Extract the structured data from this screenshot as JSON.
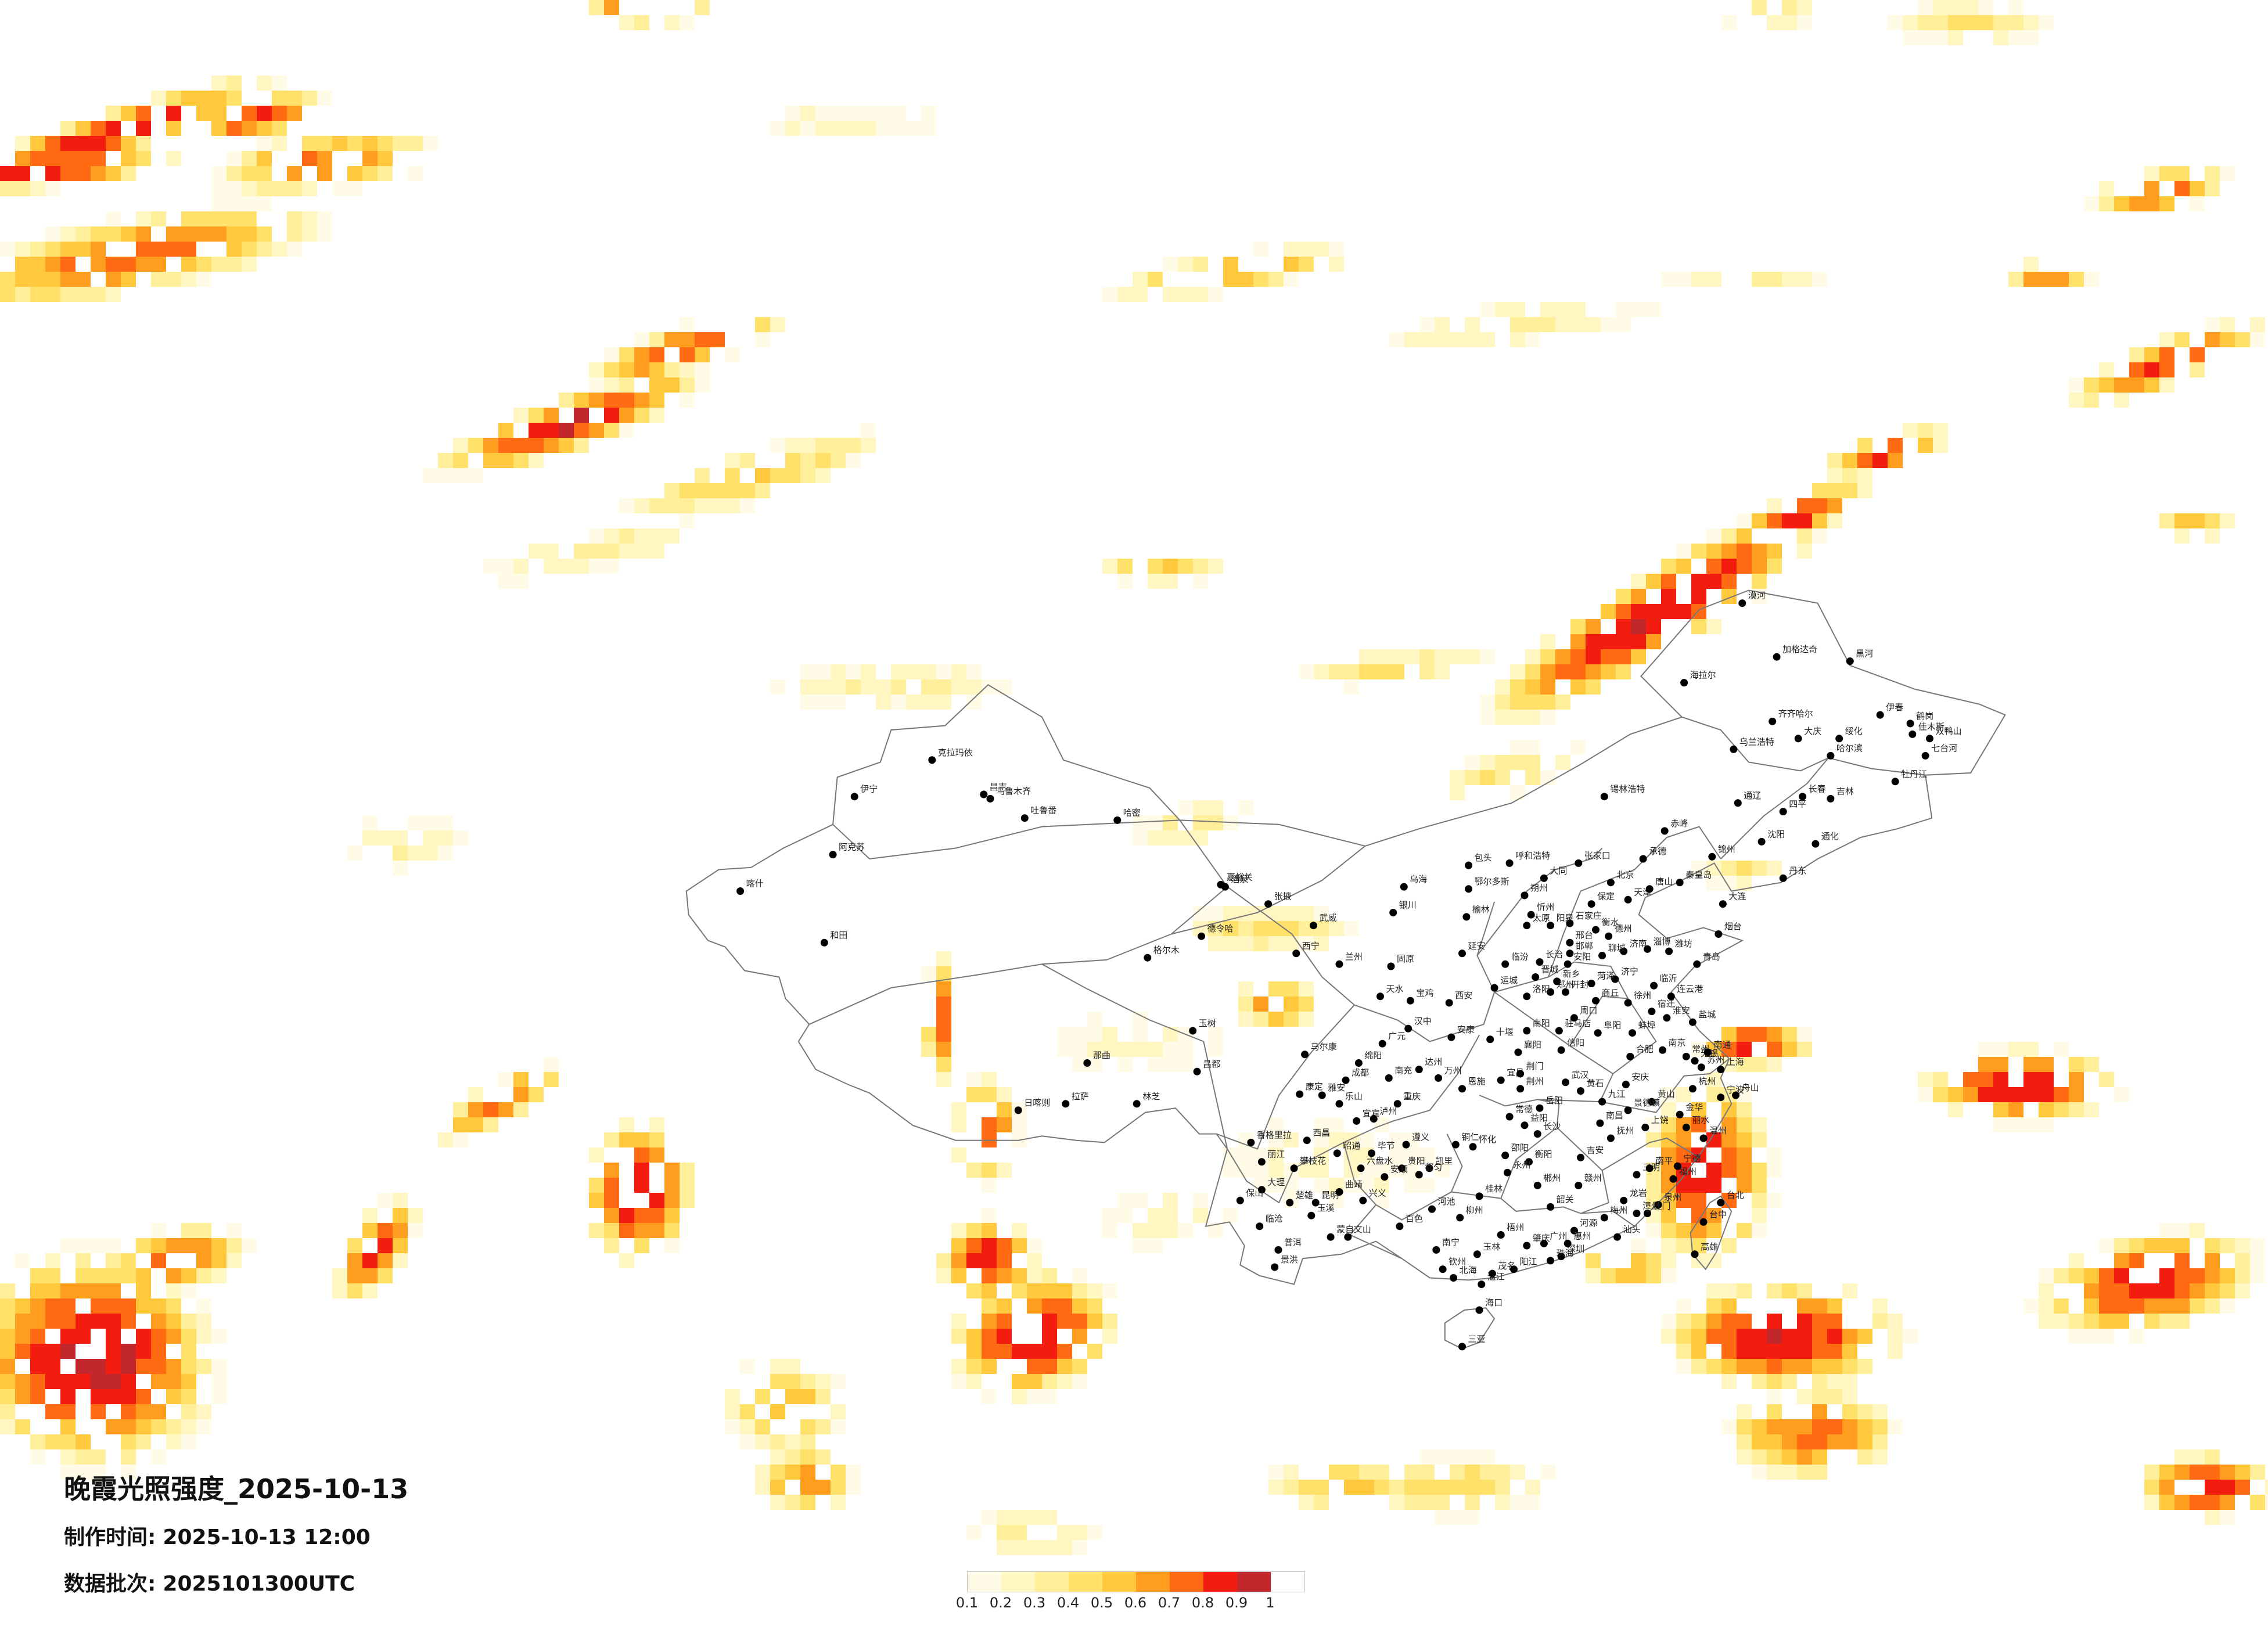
{
  "title": "晚霞光照强度_2025-10-13",
  "made_time": {
    "label": "制作时间:",
    "value": "2025-10-13 12:00"
  },
  "data_batch": {
    "label": "数据批次:",
    "value": "2025101300UTC"
  },
  "legend": {
    "ticks": [
      "0.1",
      "0.2",
      "0.3",
      "0.4",
      "0.5",
      "0.6",
      "0.7",
      "0.8",
      "0.9",
      "1"
    ],
    "colors": [
      "#fffbe6",
      "#fff6c2",
      "#ffef9a",
      "#ffe169",
      "#ffc83d",
      "#ff9d1e",
      "#ff6a12",
      "#f21d0e",
      "#c3272e"
    ]
  },
  "map": {
    "outline_color": "#777777",
    "city_dot_color": "#000000",
    "cities": [
      {
        "name": "克拉玛依",
        "lon": 84.9,
        "lat": 45.6
      },
      {
        "name": "昌吉",
        "lon": 87.3,
        "lat": 44.0
      },
      {
        "name": "乌鲁木齐",
        "lon": 87.6,
        "lat": 43.8
      },
      {
        "name": "吐鲁番",
        "lon": 89.2,
        "lat": 42.9
      },
      {
        "name": "哈密",
        "lon": 93.5,
        "lat": 42.8
      },
      {
        "name": "伊宁",
        "lon": 81.3,
        "lat": 43.9
      },
      {
        "name": "阿克苏",
        "lon": 80.3,
        "lat": 41.2
      },
      {
        "name": "喀什",
        "lon": 76.0,
        "lat": 39.5
      },
      {
        "name": "和田",
        "lon": 79.9,
        "lat": 37.1
      },
      {
        "name": "德令哈",
        "lon": 97.4,
        "lat": 37.4
      },
      {
        "name": "格尔木",
        "lon": 94.9,
        "lat": 36.4
      },
      {
        "name": "西宁",
        "lon": 101.8,
        "lat": 36.6
      },
      {
        "name": "玉树",
        "lon": 97.0,
        "lat": 33.0
      },
      {
        "name": "那曲",
        "lon": 92.1,
        "lat": 31.5
      },
      {
        "name": "拉萨",
        "lon": 91.1,
        "lat": 29.6
      },
      {
        "name": "日喀则",
        "lon": 88.9,
        "lat": 29.3
      },
      {
        "name": "林芝",
        "lon": 94.4,
        "lat": 29.6
      },
      {
        "name": "昌都",
        "lon": 97.2,
        "lat": 31.1
      },
      {
        "name": "酒泉",
        "lon": 98.5,
        "lat": 39.7
      },
      {
        "name": "嘉峪关",
        "lon": 98.3,
        "lat": 39.8
      },
      {
        "name": "张掖",
        "lon": 100.5,
        "lat": 38.9
      },
      {
        "name": "武威",
        "lon": 102.6,
        "lat": 37.9
      },
      {
        "name": "兰州",
        "lon": 103.8,
        "lat": 36.1
      },
      {
        "name": "天水",
        "lon": 105.7,
        "lat": 34.6
      },
      {
        "name": "银川",
        "lon": 106.3,
        "lat": 38.5
      },
      {
        "name": "固原",
        "lon": 106.2,
        "lat": 36.0
      },
      {
        "name": "乌海",
        "lon": 106.8,
        "lat": 39.7
      },
      {
        "name": "包头",
        "lon": 109.8,
        "lat": 40.7
      },
      {
        "name": "呼和浩特",
        "lon": 111.7,
        "lat": 40.8
      },
      {
        "name": "鄂尔多斯",
        "lon": 109.8,
        "lat": 39.6
      },
      {
        "name": "锡林浩特",
        "lon": 116.1,
        "lat": 43.9
      },
      {
        "name": "赤峰",
        "lon": 118.9,
        "lat": 42.3
      },
      {
        "name": "通辽",
        "lon": 122.3,
        "lat": 43.6
      },
      {
        "name": "海拉尔",
        "lon": 119.8,
        "lat": 49.2
      },
      {
        "name": "乌兰浩特",
        "lon": 122.1,
        "lat": 46.1
      },
      {
        "name": "加格达奇",
        "lon": 124.1,
        "lat": 50.4
      },
      {
        "name": "漠河",
        "lon": 122.5,
        "lat": 52.9
      },
      {
        "name": "黑河",
        "lon": 127.5,
        "lat": 50.2
      },
      {
        "name": "齐齐哈尔",
        "lon": 123.9,
        "lat": 47.4
      },
      {
        "name": "大庆",
        "lon": 125.1,
        "lat": 46.6
      },
      {
        "name": "绥化",
        "lon": 127.0,
        "lat": 46.6
      },
      {
        "name": "哈尔滨",
        "lon": 126.6,
        "lat": 45.8
      },
      {
        "name": "伊春",
        "lon": 128.9,
        "lat": 47.7
      },
      {
        "name": "鹤岗",
        "lon": 130.3,
        "lat": 47.3
      },
      {
        "name": "佳木斯",
        "lon": 130.4,
        "lat": 46.8
      },
      {
        "name": "双鸭山",
        "lon": 131.2,
        "lat": 46.6
      },
      {
        "name": "七台河",
        "lon": 131.0,
        "lat": 45.8
      },
      {
        "name": "牡丹江",
        "lon": 129.6,
        "lat": 44.6
      },
      {
        "name": "长春",
        "lon": 125.3,
        "lat": 43.9
      },
      {
        "name": "吉林",
        "lon": 126.6,
        "lat": 43.8
      },
      {
        "name": "四平",
        "lon": 124.4,
        "lat": 43.2
      },
      {
        "name": "通化",
        "lon": 125.9,
        "lat": 41.7
      },
      {
        "name": "沈阳",
        "lon": 123.4,
        "lat": 41.8
      },
      {
        "name": "大连",
        "lon": 121.6,
        "lat": 38.9
      },
      {
        "name": "锦州",
        "lon": 121.1,
        "lat": 41.1
      },
      {
        "name": "丹东",
        "lon": 124.4,
        "lat": 40.1
      },
      {
        "name": "北京",
        "lon": 116.4,
        "lat": 39.9
      },
      {
        "name": "天津",
        "lon": 117.2,
        "lat": 39.1
      },
      {
        "name": "张家口",
        "lon": 114.9,
        "lat": 40.8
      },
      {
        "name": "承德",
        "lon": 117.9,
        "lat": 41.0
      },
      {
        "name": "秦皇岛",
        "lon": 119.6,
        "lat": 39.9
      },
      {
        "name": "唐山",
        "lon": 118.2,
        "lat": 39.6
      },
      {
        "name": "保定",
        "lon": 115.5,
        "lat": 38.9
      },
      {
        "name": "石家庄",
        "lon": 114.5,
        "lat": 38.0
      },
      {
        "name": "衡水",
        "lon": 115.7,
        "lat": 37.7
      },
      {
        "name": "邢台",
        "lon": 114.5,
        "lat": 37.1
      },
      {
        "name": "邯郸",
        "lon": 114.5,
        "lat": 36.6
      },
      {
        "name": "大同",
        "lon": 113.3,
        "lat": 40.1
      },
      {
        "name": "朔州",
        "lon": 112.4,
        "lat": 39.3
      },
      {
        "name": "忻州",
        "lon": 112.7,
        "lat": 38.4
      },
      {
        "name": "太原",
        "lon": 112.5,
        "lat": 37.9
      },
      {
        "name": "阳泉",
        "lon": 113.6,
        "lat": 37.9
      },
      {
        "name": "长治",
        "lon": 113.1,
        "lat": 36.2
      },
      {
        "name": "晋城",
        "lon": 112.9,
        "lat": 35.5
      },
      {
        "name": "临汾",
        "lon": 111.5,
        "lat": 36.1
      },
      {
        "name": "运城",
        "lon": 111.0,
        "lat": 35.0
      },
      {
        "name": "延安",
        "lon": 109.5,
        "lat": 36.6
      },
      {
        "name": "榆林",
        "lon": 109.7,
        "lat": 38.3
      },
      {
        "name": "西安",
        "lon": 108.9,
        "lat": 34.3
      },
      {
        "name": "宝鸡",
        "lon": 107.1,
        "lat": 34.4
      },
      {
        "name": "汉中",
        "lon": 107.0,
        "lat": 33.1
      },
      {
        "name": "安康",
        "lon": 109.0,
        "lat": 32.7
      },
      {
        "name": "济南",
        "lon": 117.0,
        "lat": 36.7
      },
      {
        "name": "青岛",
        "lon": 120.4,
        "lat": 36.1
      },
      {
        "name": "烟台",
        "lon": 121.4,
        "lat": 37.5
      },
      {
        "name": "潍坊",
        "lon": 119.1,
        "lat": 36.7
      },
      {
        "name": "淄博",
        "lon": 118.1,
        "lat": 36.8
      },
      {
        "name": "临沂",
        "lon": 118.4,
        "lat": 35.1
      },
      {
        "name": "济宁",
        "lon": 116.6,
        "lat": 35.4
      },
      {
        "name": "菏泽",
        "lon": 115.5,
        "lat": 35.2
      },
      {
        "name": "聊城",
        "lon": 116.0,
        "lat": 36.5
      },
      {
        "name": "德州",
        "lon": 116.3,
        "lat": 37.4
      },
      {
        "name": "郑州",
        "lon": 113.6,
        "lat": 34.8
      },
      {
        "name": "开封",
        "lon": 114.3,
        "lat": 34.8
      },
      {
        "name": "洛阳",
        "lon": 112.5,
        "lat": 34.6
      },
      {
        "name": "新乡",
        "lon": 113.9,
        "lat": 35.3
      },
      {
        "name": "安阳",
        "lon": 114.4,
        "lat": 36.1
      },
      {
        "name": "商丘",
        "lon": 115.7,
        "lat": 34.4
      },
      {
        "name": "周口",
        "lon": 114.7,
        "lat": 33.6
      },
      {
        "name": "驻马店",
        "lon": 114.0,
        "lat": 33.0
      },
      {
        "name": "南阳",
        "lon": 112.5,
        "lat": 33.0
      },
      {
        "name": "信阳",
        "lon": 114.1,
        "lat": 32.1
      },
      {
        "name": "连云港",
        "lon": 119.2,
        "lat": 34.6
      },
      {
        "name": "徐州",
        "lon": 117.2,
        "lat": 34.3
      },
      {
        "name": "宿迁",
        "lon": 118.3,
        "lat": 33.9
      },
      {
        "name": "淮安",
        "lon": 119.0,
        "lat": 33.6
      },
      {
        "name": "盐城",
        "lon": 120.2,
        "lat": 33.4
      },
      {
        "name": "南京",
        "lon": 118.8,
        "lat": 32.1
      },
      {
        "name": "苏州",
        "lon": 120.6,
        "lat": 31.3
      },
      {
        "name": "无锡",
        "lon": 120.3,
        "lat": 31.6
      },
      {
        "name": "常州",
        "lon": 119.9,
        "lat": 31.8
      },
      {
        "name": "南通",
        "lon": 120.9,
        "lat": 32.0
      },
      {
        "name": "上海",
        "lon": 121.5,
        "lat": 31.2
      },
      {
        "name": "杭州",
        "lon": 120.2,
        "lat": 30.3
      },
      {
        "name": "宁波",
        "lon": 121.5,
        "lat": 29.9
      },
      {
        "name": "舟山",
        "lon": 122.2,
        "lat": 30.0
      },
      {
        "name": "金华",
        "lon": 119.6,
        "lat": 29.1
      },
      {
        "name": "温州",
        "lon": 120.7,
        "lat": 28.0
      },
      {
        "name": "丽水",
        "lon": 119.9,
        "lat": 28.5
      },
      {
        "name": "合肥",
        "lon": 117.3,
        "lat": 31.8
      },
      {
        "name": "蚌埠",
        "lon": 117.4,
        "lat": 32.9
      },
      {
        "name": "阜阳",
        "lon": 115.8,
        "lat": 32.9
      },
      {
        "name": "安庆",
        "lon": 117.1,
        "lat": 30.5
      },
      {
        "name": "黄山",
        "lon": 118.3,
        "lat": 29.7
      },
      {
        "name": "武汉",
        "lon": 114.3,
        "lat": 30.6
      },
      {
        "name": "襄阳",
        "lon": 112.1,
        "lat": 32.0
      },
      {
        "name": "宜昌",
        "lon": 111.3,
        "lat": 30.7
      },
      {
        "name": "荆门",
        "lon": 112.2,
        "lat": 31.0
      },
      {
        "name": "荆州",
        "lon": 112.2,
        "lat": 30.3
      },
      {
        "name": "十堰",
        "lon": 110.8,
        "lat": 32.6
      },
      {
        "name": "恩施",
        "lon": 109.5,
        "lat": 30.3
      },
      {
        "name": "黄石",
        "lon": 115.0,
        "lat": 30.2
      },
      {
        "name": "长沙",
        "lon": 113.0,
        "lat": 28.2
      },
      {
        "name": "岳阳",
        "lon": 113.1,
        "lat": 29.4
      },
      {
        "name": "常德",
        "lon": 111.7,
        "lat": 29.0
      },
      {
        "name": "益阳",
        "lon": 112.4,
        "lat": 28.6
      },
      {
        "name": "怀化",
        "lon": 110.0,
        "lat": 27.6
      },
      {
        "name": "邵阳",
        "lon": 111.5,
        "lat": 27.2
      },
      {
        "name": "衡阳",
        "lon": 112.6,
        "lat": 26.9
      },
      {
        "name": "永州",
        "lon": 111.6,
        "lat": 26.4
      },
      {
        "name": "郴州",
        "lon": 113.0,
        "lat": 25.8
      },
      {
        "name": "南昌",
        "lon": 115.9,
        "lat": 28.7
      },
      {
        "name": "九江",
        "lon": 116.0,
        "lat": 29.7
      },
      {
        "name": "景德镇",
        "lon": 117.2,
        "lat": 29.3
      },
      {
        "name": "上饶",
        "lon": 118.0,
        "lat": 28.5
      },
      {
        "name": "抚州",
        "lon": 116.4,
        "lat": 28.0
      },
      {
        "name": "吉安",
        "lon": 115.0,
        "lat": 27.1
      },
      {
        "name": "赣州",
        "lon": 114.9,
        "lat": 25.8
      },
      {
        "name": "福州",
        "lon": 119.3,
        "lat": 26.1
      },
      {
        "name": "厦门",
        "lon": 118.1,
        "lat": 24.5
      },
      {
        "name": "泉州",
        "lon": 118.6,
        "lat": 24.9
      },
      {
        "name": "漳州",
        "lon": 117.6,
        "lat": 24.5
      },
      {
        "name": "三明",
        "lon": 117.6,
        "lat": 26.3
      },
      {
        "name": "南平",
        "lon": 118.2,
        "lat": 26.6
      },
      {
        "name": "龙岩",
        "lon": 117.0,
        "lat": 25.1
      },
      {
        "name": "宁德",
        "lon": 119.5,
        "lat": 26.7
      },
      {
        "name": "台北",
        "lon": 121.5,
        "lat": 25.0
      },
      {
        "name": "台中",
        "lon": 120.7,
        "lat": 24.1
      },
      {
        "name": "高雄",
        "lon": 120.3,
        "lat": 22.6
      },
      {
        "name": "广州",
        "lon": 113.3,
        "lat": 23.1
      },
      {
        "name": "深圳",
        "lon": 114.1,
        "lat": 22.5
      },
      {
        "name": "珠海",
        "lon": 113.6,
        "lat": 22.3
      },
      {
        "name": "汕头",
        "lon": 116.7,
        "lat": 23.4
      },
      {
        "name": "梅州",
        "lon": 116.1,
        "lat": 24.3
      },
      {
        "name": "韶关",
        "lon": 113.6,
        "lat": 24.8
      },
      {
        "name": "湛江",
        "lon": 110.4,
        "lat": 21.2
      },
      {
        "name": "茂名",
        "lon": 110.9,
        "lat": 21.7
      },
      {
        "name": "阳江",
        "lon": 111.9,
        "lat": 21.9
      },
      {
        "name": "肇庆",
        "lon": 112.5,
        "lat": 23.0
      },
      {
        "name": "河源",
        "lon": 114.7,
        "lat": 23.7
      },
      {
        "name": "惠州",
        "lon": 114.4,
        "lat": 23.1
      },
      {
        "name": "南宁",
        "lon": 108.3,
        "lat": 22.8
      },
      {
        "name": "柳州",
        "lon": 109.4,
        "lat": 24.3
      },
      {
        "name": "桂林",
        "lon": 110.3,
        "lat": 25.3
      },
      {
        "name": "梧州",
        "lon": 111.3,
        "lat": 23.5
      },
      {
        "name": "玉林",
        "lon": 110.2,
        "lat": 22.6
      },
      {
        "name": "百色",
        "lon": 106.6,
        "lat": 23.9
      },
      {
        "name": "河池",
        "lon": 108.1,
        "lat": 24.7
      },
      {
        "name": "钦州",
        "lon": 108.6,
        "lat": 21.9
      },
      {
        "name": "北海",
        "lon": 109.1,
        "lat": 21.5
      },
      {
        "name": "海口",
        "lon": 110.3,
        "lat": 20.0
      },
      {
        "name": "三亚",
        "lon": 109.5,
        "lat": 18.3
      },
      {
        "name": "成都",
        "lon": 104.1,
        "lat": 30.7
      },
      {
        "name": "绵阳",
        "lon": 104.7,
        "lat": 31.5
      },
      {
        "name": "广元",
        "lon": 105.8,
        "lat": 32.4
      },
      {
        "name": "南充",
        "lon": 106.1,
        "lat": 30.8
      },
      {
        "name": "达州",
        "lon": 107.5,
        "lat": 31.2
      },
      {
        "name": "乐山",
        "lon": 103.8,
        "lat": 29.6
      },
      {
        "name": "宜宾",
        "lon": 104.6,
        "lat": 28.8
      },
      {
        "name": "泸州",
        "lon": 105.4,
        "lat": 28.9
      },
      {
        "name": "西昌",
        "lon": 102.3,
        "lat": 27.9
      },
      {
        "name": "康定",
        "lon": 101.96,
        "lat": 30.05
      },
      {
        "name": "马尔康",
        "lon": 102.2,
        "lat": 31.9
      },
      {
        "name": "雅安",
        "lon": 103.0,
        "lat": 30.0
      },
      {
        "name": "攀枝花",
        "lon": 101.7,
        "lat": 26.6
      },
      {
        "name": "重庆",
        "lon": 106.5,
        "lat": 29.6
      },
      {
        "name": "万州",
        "lon": 108.4,
        "lat": 30.8
      },
      {
        "name": "贵阳",
        "lon": 106.7,
        "lat": 26.6
      },
      {
        "name": "遵义",
        "lon": 106.9,
        "lat": 27.7
      },
      {
        "name": "毕节",
        "lon": 105.3,
        "lat": 27.3
      },
      {
        "name": "六盘水",
        "lon": 104.8,
        "lat": 26.6
      },
      {
        "name": "安顺",
        "lon": 105.9,
        "lat": 26.2
      },
      {
        "name": "凯里",
        "lon": 107.98,
        "lat": 26.6
      },
      {
        "name": "都匀",
        "lon": 107.5,
        "lat": 26.3
      },
      {
        "name": "兴义",
        "lon": 104.9,
        "lat": 25.1
      },
      {
        "name": "铜仁",
        "lon": 109.2,
        "lat": 27.7
      },
      {
        "name": "昆明",
        "lon": 102.7,
        "lat": 25.0
      },
      {
        "name": "曲靖",
        "lon": 103.8,
        "lat": 25.5
      },
      {
        "name": "玉溪",
        "lon": 102.5,
        "lat": 24.4
      },
      {
        "name": "大理",
        "lon": 100.2,
        "lat": 25.6
      },
      {
        "name": "丽江",
        "lon": 100.2,
        "lat": 26.9
      },
      {
        "name": "保山",
        "lon": 99.2,
        "lat": 25.1
      },
      {
        "name": "临沧",
        "lon": 100.1,
        "lat": 23.9
      },
      {
        "name": "普洱",
        "lon": 100.97,
        "lat": 22.8
      },
      {
        "name": "景洪",
        "lon": 100.8,
        "lat": 22.0
      },
      {
        "name": "蒙自",
        "lon": 103.4,
        "lat": 23.4
      },
      {
        "name": "文山",
        "lon": 104.2,
        "lat": 23.4
      },
      {
        "name": "楚雄",
        "lon": 101.5,
        "lat": 25.0
      },
      {
        "name": "昭通",
        "lon": 103.7,
        "lat": 27.3
      },
      {
        "name": "香格里拉",
        "lon": 99.7,
        "lat": 27.8
      }
    ]
  }
}
